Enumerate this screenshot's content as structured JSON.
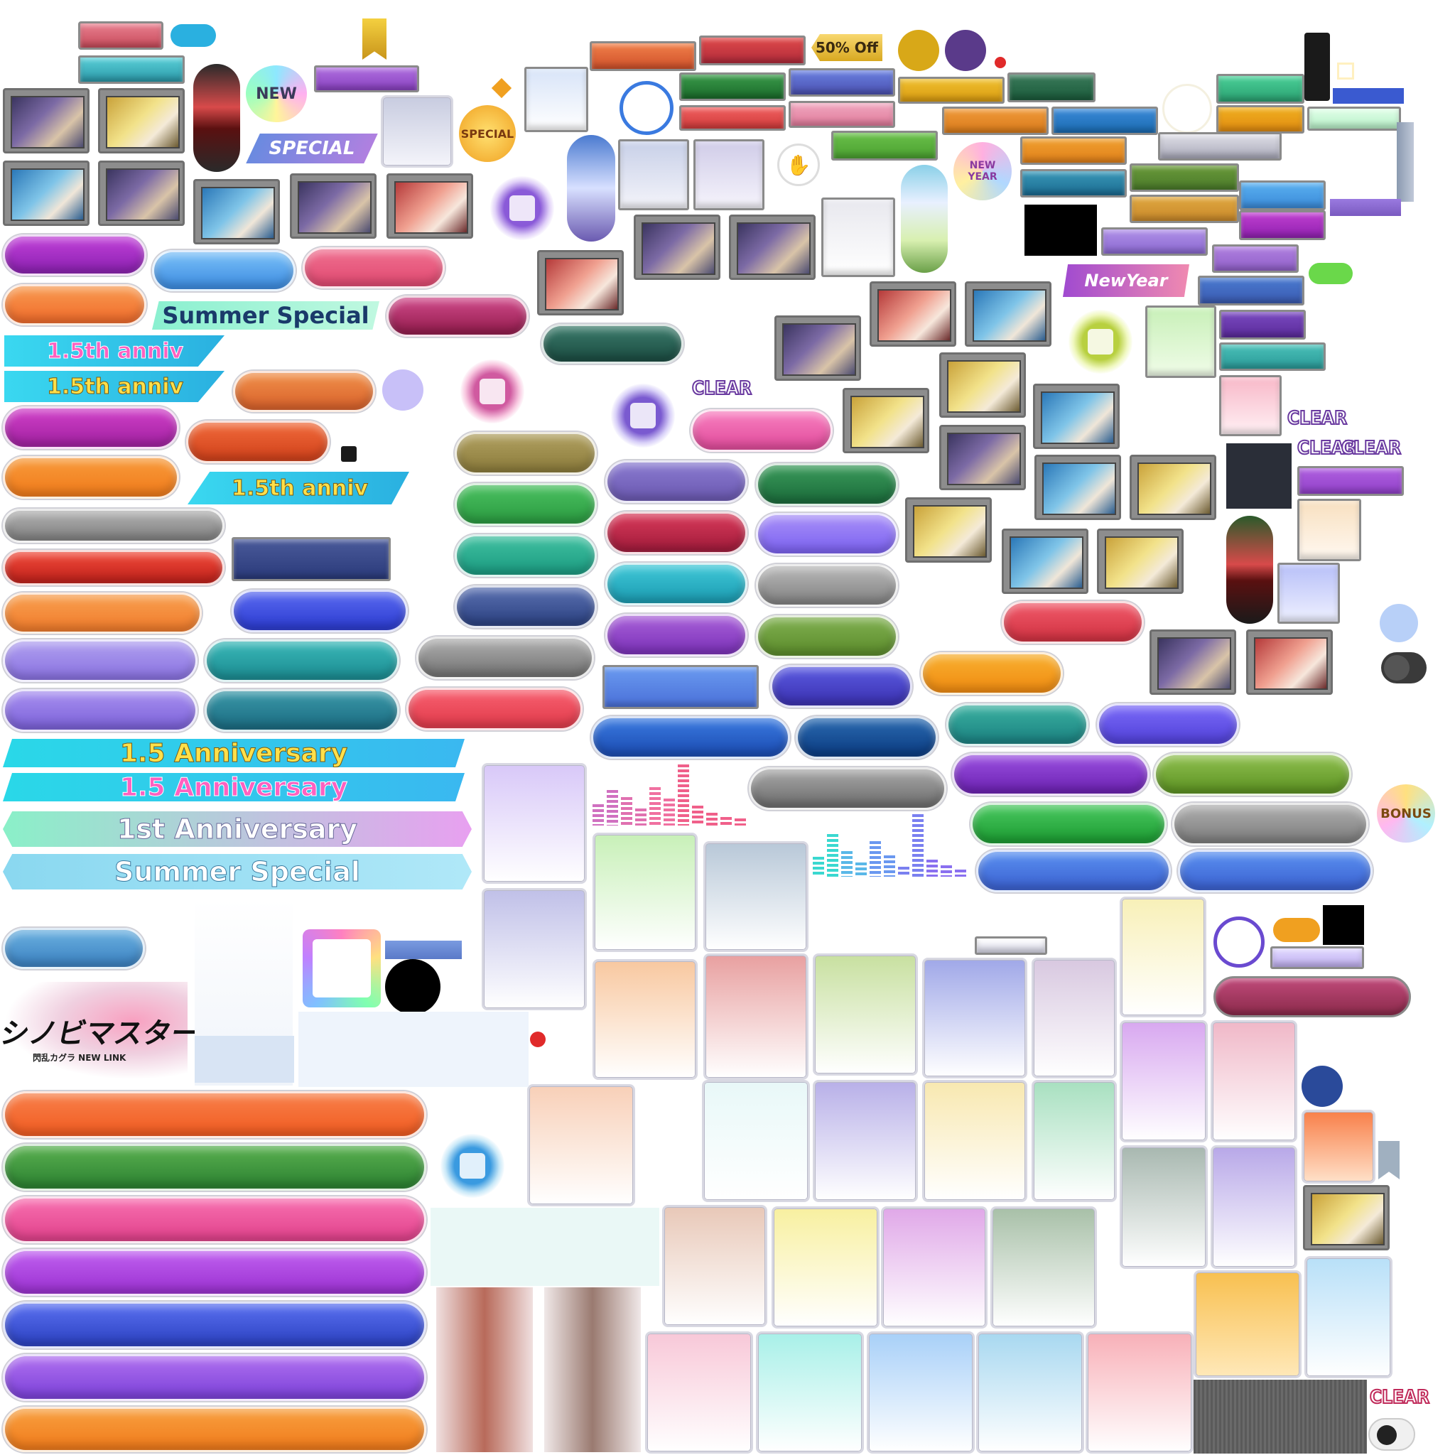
{
  "banners": {
    "anniv15_short": "1.5th anniv",
    "anniv15_long": "1.5 Anniversary",
    "anniv1": "1st Anniversary",
    "summer": "Summer Special",
    "newyear": "NewYear"
  },
  "badges": {
    "new": "NEW",
    "special": "SPECIAL",
    "discount": "50% Off",
    "new_year": "NEW YEAR",
    "bonus": "BONUS",
    "clear": "CLEAR"
  },
  "logo": {
    "title": "シノビマスター",
    "subtitle": "閃乱カグラ NEW LINK"
  },
  "colors": {
    "purple": "#9a2fc4",
    "blue": "#4a9ee8",
    "pink": "#e84a7a",
    "orange": "#f07a2a",
    "red": "#e0302a",
    "gray": "#8a8a8a",
    "green": "#3aa84a",
    "teal": "#2a9ea8",
    "navy": "#3a4a8a",
    "violet": "#7a5ae0",
    "gold": "#d8a820",
    "cyan": "#2ec8e8"
  }
}
